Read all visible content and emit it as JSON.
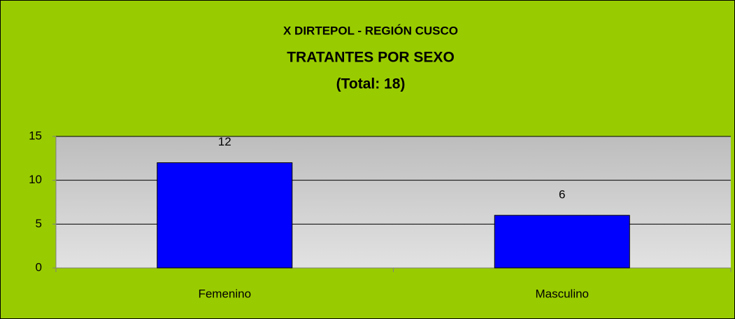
{
  "chart_data": {
    "type": "bar",
    "title": "X DIRTEPOL - REGIÓN CUSCO",
    "subtitle": "TRATANTES POR SEXO",
    "annotation": "(Total: 18)",
    "categories": [
      "Femenino",
      "Masculino"
    ],
    "values": [
      12,
      6
    ],
    "color": "#0000ff",
    "ylim": [
      0,
      15
    ],
    "yticks": [
      0,
      5,
      10,
      15
    ],
    "grid": true
  }
}
